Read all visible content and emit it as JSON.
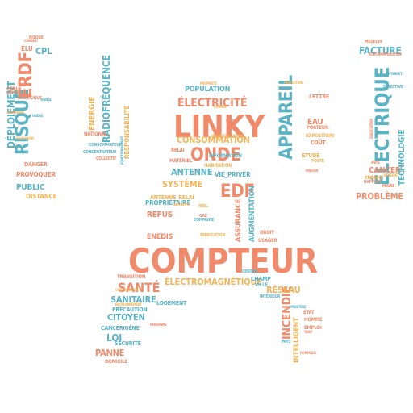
{
  "words": [
    {
      "text": "COMPTEUR",
      "color": "orange"
    },
    {
      "text": "LINKY",
      "color": "orange"
    },
    {
      "text": "ÉLECTRIQUE",
      "color": "teal"
    },
    {
      "text": "RISQUE",
      "color": "teal"
    },
    {
      "text": "ERDF",
      "color": "orange"
    },
    {
      "text": "APPAREIL",
      "color": "teal"
    },
    {
      "text": "ONDE",
      "color": "orange"
    },
    {
      "text": "EDF",
      "color": "orange"
    },
    {
      "text": "ÉLECTRICITÉ",
      "color": "orange"
    },
    {
      "text": "SANTÉ",
      "color": "orange"
    },
    {
      "text": "INCENDIE",
      "color": "orange"
    },
    {
      "text": "FACTURE",
      "color": "teal"
    },
    {
      "text": "DÉPLOIEMENT",
      "color": "teal"
    },
    {
      "text": "CONSOMMATION",
      "color": "yellow"
    },
    {
      "text": "ÉLECTROMAGNÉTIQUE",
      "color": "yellow"
    },
    {
      "text": "RADIOFRÉQUENCE",
      "color": "teal"
    },
    {
      "text": "TECHNOLOGIE",
      "color": "teal"
    },
    {
      "text": "ANTENNE",
      "color": "teal"
    },
    {
      "text": "SYSTÈME",
      "color": "yellow"
    },
    {
      "text": "RÉSEAU",
      "color": "yellow"
    },
    {
      "text": "SANITAIRE",
      "color": "teal"
    },
    {
      "text": "CITOYEN",
      "color": "teal"
    },
    {
      "text": "LOI",
      "color": "teal"
    },
    {
      "text": "PANNE",
      "color": "orange"
    },
    {
      "text": "CANCER",
      "color": "orange"
    },
    {
      "text": "PROBLÈME",
      "color": "orange"
    },
    {
      "text": "POPULATION",
      "color": "teal"
    },
    {
      "text": "PUBLIC",
      "color": "teal"
    },
    {
      "text": "REFUS",
      "color": "orange"
    },
    {
      "text": "ENEDIS",
      "color": "orange"
    },
    {
      "text": "ASSURANCE",
      "color": "orange"
    },
    {
      "text": "AUGMENTATION",
      "color": "teal"
    },
    {
      "text": "EAU",
      "color": "orange"
    },
    {
      "text": "INTELLIGENT",
      "color": "yellow"
    },
    {
      "text": "ÉNERGIE",
      "color": "yellow"
    },
    {
      "text": "CPL",
      "color": "teal"
    },
    {
      "text": "ÉLU",
      "color": "orange"
    },
    {
      "text": "PROVOQUER",
      "color": "orange"
    },
    {
      "text": "RESPONSABILITÉ",
      "color": "yellow"
    },
    {
      "text": "PRÉCAUTION",
      "color": "teal"
    },
    {
      "text": "SÉCURITÉ",
      "color": "teal"
    },
    {
      "text": "CANCÉRIGÈNE",
      "color": "teal"
    },
    {
      "text": "PROPRIÉTAIRE",
      "color": "teal"
    },
    {
      "text": "LOGEMENT",
      "color": "teal"
    },
    {
      "text": "VIE_PRIVER",
      "color": "teal"
    },
    {
      "text": "COÛT",
      "color": "orange"
    },
    {
      "text": "LETTRE",
      "color": "orange"
    },
    {
      "text": "DISTANCE",
      "color": "yellow"
    },
    {
      "text": "DANGER",
      "color": "orange"
    },
    {
      "text": "ÉTUDE",
      "color": "yellow"
    },
    {
      "text": "CHAMP",
      "color": "teal"
    },
    {
      "text": "VILLE",
      "color": "teal"
    },
    {
      "text": "ENFANT",
      "color": "yellow"
    },
    {
      "text": "PORTEUR",
      "color": "orange"
    },
    {
      "text": "HABITATION",
      "color": "yellow"
    },
    {
      "text": "RELAI",
      "color": "orange"
    },
    {
      "text": "ANTENNE_RELAI",
      "color": "yellow"
    },
    {
      "text": "INSTALLATION",
      "color": "yellow"
    },
    {
      "text": "MATÉRIEL",
      "color": "orange"
    },
    {
      "text": "EXPOSITION",
      "color": "yellow"
    },
    {
      "text": "INFORMATION",
      "color": "teal"
    },
    {
      "text": "NATIONAL",
      "color": "orange"
    },
    {
      "text": "CONCENTRATEUR",
      "color": "teal"
    },
    {
      "text": "TRANSITION",
      "color": "orange"
    },
    {
      "text": "DOMICILE",
      "color": "orange"
    },
    {
      "text": "EMPLOI",
      "color": "orange"
    },
    {
      "text": "HOMME",
      "color": "orange"
    },
    {
      "text": "ÉTAT",
      "color": "orange"
    },
    {
      "text": "CÂBLE",
      "color": "orange"
    },
    {
      "text": "ALLERGIQUE",
      "color": "orange"
    },
    {
      "text": "COMMUNE",
      "color": "teal"
    },
    {
      "text": "MÉDECIN",
      "color": "orange"
    },
    {
      "text": "MAIRE",
      "color": "orange"
    },
    {
      "text": "AVIS",
      "color": "orange"
    },
    {
      "text": "RAPPORT",
      "color": "orange"
    },
    {
      "text": "RÉEL",
      "color": "yellow"
    },
    {
      "text": "SOCIÉTÉ",
      "color": "yellow"
    },
    {
      "text": "GAZ",
      "color": "orange"
    },
    {
      "text": "USAGER",
      "color": "orange"
    },
    {
      "text": "DROIT",
      "color": "orange"
    },
    {
      "text": "INTÉRIEUR",
      "color": "teal"
    },
    {
      "text": "PAYS",
      "color": "teal"
    },
    {
      "text": "CENTRE",
      "color": "teal"
    },
    {
      "text": "DIRECTIVE",
      "color": "teal"
    },
    {
      "text": "URGENT",
      "color": "yellow"
    },
    {
      "text": "FABRICATION",
      "color": "yellow"
    },
    {
      "text": "POSTE",
      "color": "yellow"
    },
    {
      "text": "RISQUE",
      "color": "orange"
    },
    {
      "text": "CONSOMMATEUR",
      "color": "teal"
    },
    {
      "text": "COLLECTIF",
      "color": "orange"
    },
    {
      "text": "CONTESTATION",
      "color": "yellow"
    },
    {
      "text": "ENVIRONNEMENT",
      "color": "yellow"
    },
    {
      "text": "TÉLÉCOMMUNICATION",
      "color": "orange"
    },
    {
      "text": "ASSOCIATION",
      "color": "orange"
    },
    {
      "text": "CONSEIL",
      "color": "orange"
    },
    {
      "text": "CONTRAT",
      "color": "orange"
    },
    {
      "text": "PROPRIÉTÉ",
      "color": "yellow"
    },
    {
      "text": "DONNÉE",
      "color": "yellow"
    },
    {
      "text": "ONDES",
      "color": "teal"
    },
    {
      "text": "TAUX",
      "color": "teal"
    },
    {
      "text": "DOMMAGE",
      "color": "orange"
    },
    {
      "text": "FONCTIONNEMENT",
      "color": "teal"
    },
    {
      "text": "MINISTÈRE",
      "color": "teal"
    },
    {
      "text": "INTERNET",
      "color": "teal"
    },
    {
      "text": "TÉLÉVISION",
      "color": "yellow"
    },
    {
      "text": "TÉLÉPHONE",
      "color": "yellow"
    },
    {
      "text": "SIGNAL",
      "color": "teal"
    },
    {
      "text": "CLIENT",
      "color": "orange"
    },
    {
      "text": "TARIF",
      "color": "orange"
    },
    {
      "text": "PERSONNE",
      "color": "orange"
    },
    {
      "text": "MAISON",
      "color": "orange"
    },
    {
      "text": "PRÉFECTURE",
      "color": "yellow"
    }
  ]
}
